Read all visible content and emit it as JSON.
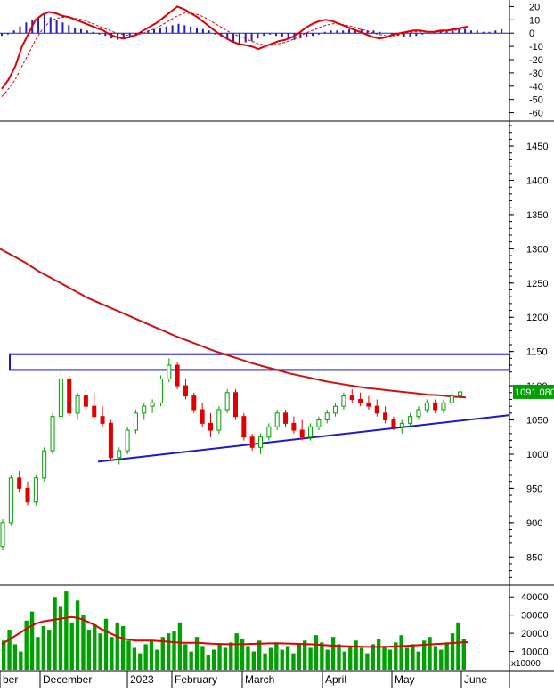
{
  "colors": {
    "up": "#00a000",
    "down": "#e00000",
    "macd_line": "#e00000",
    "signal_line": "#e00000",
    "histogram": "#2020c0",
    "trendline": "#1a1ad0",
    "ma_price": "#d01010",
    "ma_volume": "#e00000",
    "volume_bar": "#00a000",
    "price_tag_bg": "#00a000",
    "price_tag_fg": "#ffffff",
    "grid": "#000000"
  },
  "chart_data": [
    {
      "type": "bar",
      "panel": "macd",
      "y_ticks": [
        "20",
        "10",
        "0",
        "-10",
        "-20",
        "-30",
        "-40",
        "-50",
        "-60"
      ],
      "y_tick_values": [
        20,
        10,
        0,
        -10,
        -20,
        -30,
        -40,
        -50,
        -60
      ],
      "ylim": [
        -65,
        25
      ],
      "histogram": [
        -2,
        -1,
        2,
        5,
        8,
        10,
        12,
        14,
        12,
        10,
        8,
        6,
        4,
        3,
        2,
        1,
        -1,
        -2,
        -4,
        -5,
        -4,
        -3,
        -2,
        1,
        2,
        3,
        4,
        5,
        6,
        7,
        6,
        5,
        4,
        3,
        2,
        -1,
        -3,
        -5,
        -7,
        -8,
        -7,
        -6,
        -4,
        -2,
        -1,
        -2,
        -3,
        -4,
        -5,
        -4,
        -3,
        -2,
        -1,
        1,
        2,
        2,
        2,
        3,
        3,
        3,
        2,
        2,
        1,
        0,
        -1,
        -2,
        -3,
        -3,
        -2,
        -1,
        0,
        1,
        2,
        2,
        2,
        3,
        3,
        2,
        2,
        1,
        1,
        2,
        3
      ],
      "macd": [
        -42,
        -35,
        -25,
        -10,
        0,
        10,
        14,
        16,
        15,
        13,
        12,
        10,
        8,
        6,
        4,
        2,
        -1,
        -3,
        -4,
        -3,
        -1,
        2,
        5,
        8,
        12,
        16,
        20,
        18,
        15,
        12,
        8,
        4,
        0,
        -3,
        -6,
        -8,
        -9,
        -10,
        -12,
        -10,
        -8,
        -6,
        -5,
        -3,
        0,
        4,
        7,
        9,
        10,
        9,
        7,
        5,
        3,
        1,
        -1,
        -3,
        -4,
        -3,
        -1,
        0,
        1,
        2,
        2,
        1,
        1,
        2,
        2,
        3,
        4,
        5
      ],
      "signal": [
        -48,
        -42,
        -35,
        -25,
        -15,
        -5,
        3,
        8,
        11,
        12,
        12,
        11,
        10,
        8,
        6,
        4,
        2,
        0,
        -1,
        -2,
        -1,
        0,
        2,
        4,
        7,
        10,
        13,
        15,
        15,
        14,
        12,
        9,
        6,
        3,
        0,
        -2,
        -4,
        -6,
        -8,
        -9,
        -9,
        -8,
        -7,
        -5,
        -3,
        0,
        2,
        4,
        6,
        7,
        7,
        6,
        5,
        3,
        2,
        0,
        -1,
        -2,
        -2,
        -1,
        0,
        1,
        1,
        1,
        1,
        1,
        2,
        2,
        3,
        4
      ]
    },
    {
      "type": "candlestick",
      "panel": "price",
      "y_ticks": [
        "1450",
        "1400",
        "1350",
        "1300",
        "1250",
        "1200",
        "1150",
        "1100",
        "1050",
        "1000",
        "950",
        "900",
        "850"
      ],
      "y_tick_values": [
        1450,
        1400,
        1350,
        1300,
        1250,
        1200,
        1150,
        1100,
        1050,
        1000,
        950,
        900,
        850
      ],
      "ylim": [
        810,
        1480
      ],
      "last_price_label": "1091.080",
      "last_price": 1091.08,
      "x_labels": [
        "ber",
        "December",
        "2023",
        "February",
        "March",
        "April",
        "May",
        "June"
      ],
      "x_label_index": [
        0,
        8,
        16,
        25,
        37,
        52,
        64,
        76
      ],
      "ohlc": [
        [
          865,
          905,
          860,
          900
        ],
        [
          900,
          970,
          895,
          965
        ],
        [
          965,
          975,
          945,
          950
        ],
        [
          950,
          960,
          925,
          930
        ],
        [
          930,
          970,
          925,
          965
        ],
        [
          965,
          1010,
          960,
          1005
        ],
        [
          1005,
          1060,
          1000,
          1055
        ],
        [
          1055,
          1120,
          1050,
          1110
        ],
        [
          1110,
          1115,
          1055,
          1060
        ],
        [
          1060,
          1090,
          1050,
          1085
        ],
        [
          1085,
          1095,
          1060,
          1070
        ],
        [
          1070,
          1090,
          1050,
          1055
        ],
        [
          1055,
          1070,
          1040,
          1045
        ],
        [
          1045,
          1050,
          990,
          995
        ],
        [
          995,
          1010,
          985,
          1005
        ],
        [
          1005,
          1040,
          1000,
          1035
        ],
        [
          1035,
          1065,
          1030,
          1060
        ],
        [
          1060,
          1075,
          1050,
          1070
        ],
        [
          1070,
          1080,
          1060,
          1075
        ],
        [
          1075,
          1115,
          1070,
          1110
        ],
        [
          1110,
          1140,
          1105,
          1130
        ],
        [
          1130,
          1135,
          1095,
          1100
        ],
        [
          1100,
          1110,
          1080,
          1085
        ],
        [
          1085,
          1090,
          1060,
          1065
        ],
        [
          1065,
          1075,
          1040,
          1045
        ],
        [
          1045,
          1060,
          1025,
          1035
        ],
        [
          1035,
          1070,
          1030,
          1065
        ],
        [
          1065,
          1095,
          1060,
          1090
        ],
        [
          1090,
          1095,
          1050,
          1055
        ],
        [
          1055,
          1060,
          1020,
          1025
        ],
        [
          1025,
          1030,
          1005,
          1010
        ],
        [
          1010,
          1030,
          1000,
          1025
        ],
        [
          1025,
          1045,
          1020,
          1040
        ],
        [
          1040,
          1065,
          1035,
          1060
        ],
        [
          1060,
          1065,
          1040,
          1045
        ],
        [
          1045,
          1055,
          1030,
          1035
        ],
        [
          1035,
          1050,
          1020,
          1025
        ],
        [
          1025,
          1045,
          1020,
          1040
        ],
        [
          1040,
          1055,
          1035,
          1050
        ],
        [
          1050,
          1065,
          1045,
          1060
        ],
        [
          1060,
          1075,
          1055,
          1070
        ],
        [
          1070,
          1090,
          1065,
          1085
        ],
        [
          1085,
          1095,
          1075,
          1080
        ],
        [
          1080,
          1090,
          1070,
          1075
        ],
        [
          1075,
          1085,
          1065,
          1070
        ],
        [
          1070,
          1080,
          1055,
          1060
        ],
        [
          1060,
          1070,
          1045,
          1050
        ],
        [
          1050,
          1055,
          1035,
          1040
        ],
        [
          1040,
          1050,
          1030,
          1045
        ],
        [
          1045,
          1060,
          1040,
          1055
        ],
        [
          1055,
          1070,
          1050,
          1065
        ],
        [
          1065,
          1080,
          1060,
          1075
        ],
        [
          1075,
          1080,
          1060,
          1065
        ],
        [
          1065,
          1080,
          1060,
          1075
        ],
        [
          1075,
          1090,
          1070,
          1085
        ],
        [
          1085,
          1095,
          1080,
          1091
        ]
      ],
      "ma": [
        1300,
        1290,
        1280,
        1268,
        1258,
        1248,
        1238,
        1228,
        1220,
        1212,
        1204,
        1196,
        1188,
        1180,
        1172,
        1165,
        1158,
        1151,
        1145,
        1139,
        1133,
        1128,
        1123,
        1118,
        1114,
        1110,
        1106,
        1103,
        1100,
        1097,
        1095,
        1093,
        1091,
        1089,
        1087,
        1086,
        1084,
        1083
      ],
      "resistance_zone": [
        1123,
        1146
      ],
      "trendline": {
        "start_value": 989,
        "end_value": 1057
      }
    },
    {
      "type": "bar",
      "panel": "volume",
      "y_ticks": [
        "40000",
        "30000",
        "20000",
        "10000"
      ],
      "y_tick_values": [
        40000,
        30000,
        20000,
        10000
      ],
      "ylim": [
        0,
        45000
      ],
      "unit_label": "x10000",
      "volume": [
        16000,
        22000,
        14000,
        10000,
        27000,
        32000,
        18000,
        24000,
        22000,
        40000,
        35000,
        43000,
        26000,
        38000,
        30000,
        22000,
        25000,
        20000,
        28000,
        18000,
        26000,
        24000,
        16000,
        12000,
        9000,
        14000,
        16000,
        11000,
        18000,
        20000,
        21000,
        26000,
        14000,
        10000,
        18000,
        13000,
        8000,
        11000,
        14000,
        12000,
        15000,
        20000,
        17000,
        13000,
        10000,
        16000,
        9000,
        12000,
        15000,
        11000,
        13000,
        9000,
        14000,
        16000,
        12000,
        19000,
        15000,
        11000,
        18000,
        14000,
        10000,
        13000,
        16000,
        12000,
        9000,
        14000,
        17000,
        13000,
        11000,
        15000,
        19000,
        12000,
        14000,
        10000,
        16000,
        18000,
        13000,
        11000,
        15000,
        20000,
        26000,
        17000
      ],
      "volume_ma": [
        14000,
        16000,
        18000,
        20000,
        22000,
        24000,
        25500,
        26500,
        27000,
        27500,
        28000,
        28500,
        29000,
        28500,
        27500,
        26000,
        24500,
        22500,
        21000,
        19500,
        18000,
        17000,
        16500,
        16000,
        16000,
        16000,
        16000,
        15800,
        15500,
        15300,
        15000,
        14800,
        14800,
        14800,
        14700,
        14500,
        14300,
        14200,
        14100,
        14000,
        14000,
        14000,
        14100,
        14200,
        14300,
        14400,
        14500,
        14500,
        14500,
        14400,
        14300,
        14200,
        14100,
        14000,
        13800,
        13600,
        13400,
        13200,
        13000,
        12900,
        12800,
        12700,
        12600,
        12500,
        12500,
        12500,
        12600,
        12700,
        12800,
        13000,
        13200,
        13400,
        13600,
        13800,
        14000,
        14200,
        14400,
        14600,
        14800,
        15000,
        15200
      ]
    }
  ]
}
